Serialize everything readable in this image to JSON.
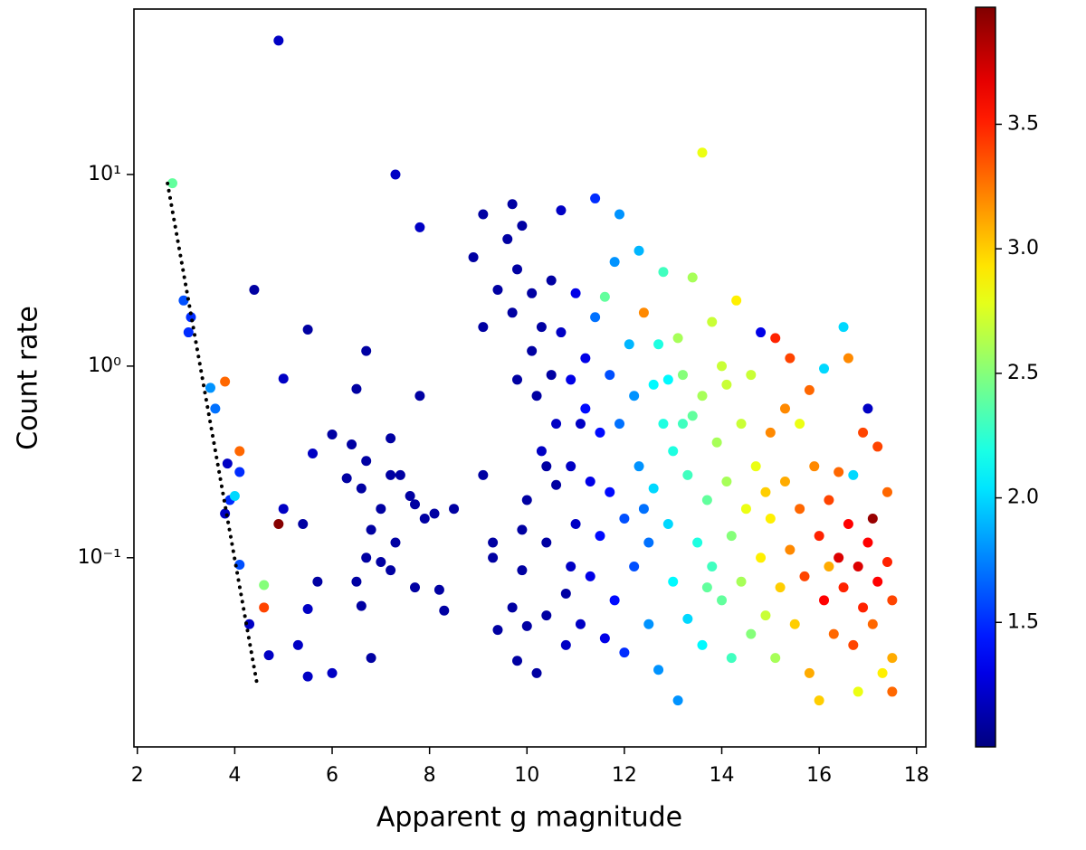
{
  "chart_data": {
    "type": "scatter",
    "xlabel": "Apparent g magnitude",
    "ylabel": "Count rate",
    "xlim": [
      1.93,
      18.19
    ],
    "ylim": [
      0.0103,
      73
    ],
    "log_y": true,
    "xticks": [
      2,
      4,
      6,
      8,
      10,
      12,
      14,
      16,
      18
    ],
    "yticks": [
      {
        "value": 0.1,
        "label": "10⁻¹"
      },
      {
        "value": 1,
        "label": "10⁰"
      },
      {
        "value": 10,
        "label": "10¹"
      }
    ],
    "colorbar": {
      "cmap": "jet",
      "clim": [
        1.0,
        3.97
      ],
      "ticks": [
        1.5,
        {
          "value": 2,
          "label": "2.0"
        },
        2.5,
        {
          "value": 3,
          "label": "3.0"
        },
        3.5
      ]
    },
    "line": {
      "x": [
        2.62,
        4.47
      ],
      "y": [
        8.98,
        0.0211
      ],
      "color": "#000000",
      "style": "dotted"
    },
    "points": {
      "x": [
        2.72,
        2.95,
        3.05,
        3.1,
        3.5,
        3.6,
        3.8,
        3.85,
        3.9,
        4.0,
        4.1,
        4.1,
        4.1,
        3.8,
        4.3,
        4.6,
        4.6,
        4.7,
        4.9,
        4.9,
        5.0,
        5.0,
        4.4,
        5.5,
        5.3,
        5.4,
        5.5,
        5.5,
        5.6,
        5.7,
        6.0,
        6.0,
        6.3,
        6.4,
        6.5,
        6.5,
        6.6,
        6.6,
        6.7,
        6.7,
        6.7,
        6.8,
        6.8,
        7.0,
        7.0,
        7.2,
        7.2,
        7.2,
        7.3,
        7.3,
        7.4,
        7.6,
        7.7,
        7.7,
        7.8,
        7.8,
        7.9,
        8.1,
        8.2,
        8.3,
        8.5,
        8.9,
        9.1,
        9.1,
        9.1,
        9.3,
        9.3,
        9.4,
        9.4,
        9.6,
        9.7,
        9.8,
        9.9,
        9.7,
        9.8,
        9.9,
        9.7,
        9.8,
        9.9,
        10.0,
        10.0,
        10.1,
        10.1,
        10.2,
        10.2,
        10.3,
        10.3,
        10.4,
        10.4,
        10.5,
        10.5,
        10.6,
        10.6,
        10.7,
        10.7,
        10.8,
        10.8,
        10.9,
        10.9,
        11.0,
        11.0,
        11.1,
        11.2,
        11.2,
        11.3,
        11.3,
        11.4,
        11.4,
        11.5,
        11.5,
        11.6,
        11.6,
        11.7,
        11.7,
        11.8,
        11.8,
        11.9,
        11.9,
        12.0,
        12.0,
        12.1,
        12.2,
        12.2,
        12.3,
        12.3,
        12.4,
        12.5,
        12.5,
        12.6,
        12.6,
        12.7,
        12.7,
        12.8,
        12.8,
        12.9,
        13.0,
        13.0,
        13.1,
        13.1,
        13.2,
        13.3,
        13.3,
        13.4,
        13.4,
        13.5,
        13.6,
        13.6,
        13.6,
        13.7,
        13.8,
        13.8,
        13.9,
        14.0,
        14.0,
        14.1,
        14.2,
        14.2,
        14.3,
        14.4,
        14.4,
        14.5,
        14.6,
        14.6,
        14.7,
        14.8,
        14.8,
        14.9,
        15.0,
        15.0,
        15.1,
        15.1,
        15.2,
        15.3,
        15.4,
        15.4,
        15.5,
        15.6,
        15.6,
        15.7,
        15.8,
        15.8,
        15.9,
        16.0,
        16.0,
        16.1,
        16.1,
        16.2,
        16.3,
        16.4,
        16.4,
        16.5,
        16.5,
        16.6,
        16.6,
        16.7,
        16.7,
        16.8,
        16.8,
        16.9,
        17.0,
        17.0,
        17.1,
        17.1,
        17.2,
        17.2,
        17.3,
        17.4,
        17.4,
        17.5,
        17.5,
        17.5,
        16.9,
        15.3,
        14.1,
        13.2,
        12.9,
        11.1,
        10.4,
        10.9,
        12.4,
        13.7,
        14.9,
        16.2
      ],
      "y": [
        9.0,
        2.2,
        1.5,
        1.8,
        0.77,
        0.6,
        0.83,
        0.31,
        0.2,
        0.21,
        0.36,
        0.28,
        0.092,
        0.17,
        0.045,
        0.072,
        0.055,
        0.031,
        0.15,
        50,
        0.86,
        0.18,
        2.5,
        1.55,
        0.035,
        0.15,
        0.054,
        0.024,
        0.35,
        0.075,
        0.44,
        0.025,
        0.26,
        0.39,
        0.76,
        0.075,
        0.056,
        0.23,
        1.2,
        0.32,
        0.1,
        0.14,
        0.03,
        0.095,
        0.18,
        0.42,
        0.27,
        0.086,
        10,
        0.12,
        0.27,
        0.21,
        0.19,
        0.07,
        5.3,
        0.7,
        0.16,
        0.17,
        0.068,
        0.053,
        0.18,
        3.7,
        6.2,
        1.6,
        0.27,
        0.12,
        0.1,
        0.042,
        2.5,
        4.6,
        7.0,
        3.2,
        5.4,
        1.9,
        0.85,
        0.086,
        0.055,
        0.029,
        0.14,
        0.044,
        0.2,
        2.4,
        1.2,
        0.7,
        0.025,
        0.36,
        1.6,
        0.12,
        0.05,
        2.8,
        0.9,
        0.5,
        0.24,
        6.5,
        1.5,
        0.065,
        0.035,
        0.85,
        0.3,
        2.4,
        0.15,
        0.045,
        1.1,
        0.6,
        0.25,
        0.08,
        7.5,
        1.8,
        0.45,
        0.13,
        2.3,
        0.038,
        0.9,
        0.22,
        3.5,
        0.06,
        6.2,
        0.5,
        0.16,
        0.032,
        1.3,
        0.7,
        0.09,
        4.0,
        0.3,
        1.9,
        0.12,
        0.045,
        0.8,
        0.23,
        1.3,
        0.026,
        3.1,
        0.5,
        0.15,
        0.36,
        0.075,
        1.4,
        0.018,
        0.9,
        0.27,
        0.048,
        2.9,
        0.55,
        0.12,
        13,
        0.7,
        0.035,
        0.2,
        1.7,
        0.09,
        0.4,
        0.06,
        1.0,
        0.25,
        0.13,
        0.03,
        2.2,
        0.5,
        0.075,
        0.18,
        0.9,
        0.04,
        0.3,
        1.5,
        0.1,
        0.05,
        0.45,
        0.16,
        1.4,
        0.03,
        0.07,
        0.25,
        1.1,
        0.11,
        0.045,
        0.18,
        0.5,
        0.08,
        0.75,
        0.025,
        0.3,
        0.13,
        0.018,
        0.97,
        0.06,
        0.2,
        0.04,
        0.1,
        0.28,
        1.6,
        0.07,
        1.1,
        0.15,
        0.035,
        0.27,
        0.02,
        0.09,
        0.055,
        0.6,
        0.12,
        0.16,
        0.045,
        0.38,
        0.075,
        0.025,
        0.22,
        0.095,
        0.06,
        0.03,
        0.02,
        0.45,
        0.6,
        0.8,
        0.5,
        0.85,
        0.5,
        0.3,
        0.09,
        0.18,
        0.07,
        0.22,
        0.09
      ],
      "c": [
        2.4,
        1.6,
        1.5,
        1.5,
        1.8,
        1.7,
        3.3,
        1.2,
        1.5,
        2.0,
        3.3,
        1.5,
        1.6,
        1.2,
        1.2,
        2.5,
        3.4,
        1.2,
        3.95,
        1.2,
        1.2,
        1.2,
        1.1,
        1.1,
        1.2,
        1.1,
        1.2,
        1.2,
        1.2,
        1.1,
        1.1,
        1.2,
        1.1,
        1.1,
        1.1,
        1.1,
        1.1,
        1.1,
        1.1,
        1.1,
        1.1,
        1.1,
        1.1,
        1.1,
        1.1,
        1.1,
        1.1,
        1.1,
        1.2,
        1.1,
        1.1,
        1.1,
        1.1,
        1.1,
        1.2,
        1.1,
        1.1,
        1.1,
        1.1,
        1.1,
        1.1,
        1.1,
        1.1,
        1.1,
        1.1,
        1.1,
        1.1,
        1.1,
        1.1,
        1.1,
        1.1,
        1.1,
        1.1,
        1.1,
        1.1,
        1.1,
        1.1,
        1.1,
        1.1,
        1.1,
        1.1,
        1.1,
        1.1,
        1.1,
        1.1,
        1.2,
        1.1,
        1.1,
        1.1,
        1.1,
        1.1,
        1.2,
        1.1,
        1.2,
        1.2,
        1.1,
        1.2,
        1.3,
        1.2,
        1.3,
        1.2,
        1.2,
        1.3,
        1.4,
        1.3,
        1.3,
        1.5,
        1.7,
        1.4,
        1.4,
        2.4,
        1.3,
        1.6,
        1.4,
        1.8,
        1.4,
        1.8,
        1.7,
        1.6,
        1.5,
        1.9,
        1.8,
        1.6,
        1.9,
        1.8,
        3.2,
        1.7,
        1.8,
        2.1,
        2.0,
        2.2,
        1.8,
        2.3,
        2.2,
        2.0,
        2.2,
        2.1,
        2.6,
        1.8,
        2.5,
        2.3,
        2.0,
        2.6,
        2.4,
        2.2,
        2.8,
        2.6,
        2.1,
        2.4,
        2.7,
        2.3,
        2.6,
        2.4,
        2.7,
        2.6,
        2.5,
        2.3,
        2.9,
        2.7,
        2.6,
        2.8,
        2.7,
        2.5,
        2.8,
        1.3,
        2.9,
        2.7,
        3.2,
        2.9,
        3.5,
        2.6,
        3.0,
        3.1,
        3.4,
        3.2,
        3.0,
        3.3,
        2.8,
        3.4,
        3.3,
        3.1,
        3.2,
        3.5,
        3.0,
        2.0,
        3.6,
        3.4,
        3.3,
        3.7,
        3.3,
        2.0,
        3.5,
        3.2,
        3.6,
        3.4,
        2.0,
        2.8,
        3.7,
        3.5,
        1.2,
        3.6,
        3.9,
        3.3,
        3.4,
        3.6,
        2.9,
        3.3,
        3.5,
        3.4,
        3.1,
        3.3,
        3.4,
        3.2,
        2.7,
        2.3,
        2.1,
        1.2,
        1.1,
        1.2,
        1.7,
        2.4,
        3.0,
        3.1
      ]
    }
  }
}
